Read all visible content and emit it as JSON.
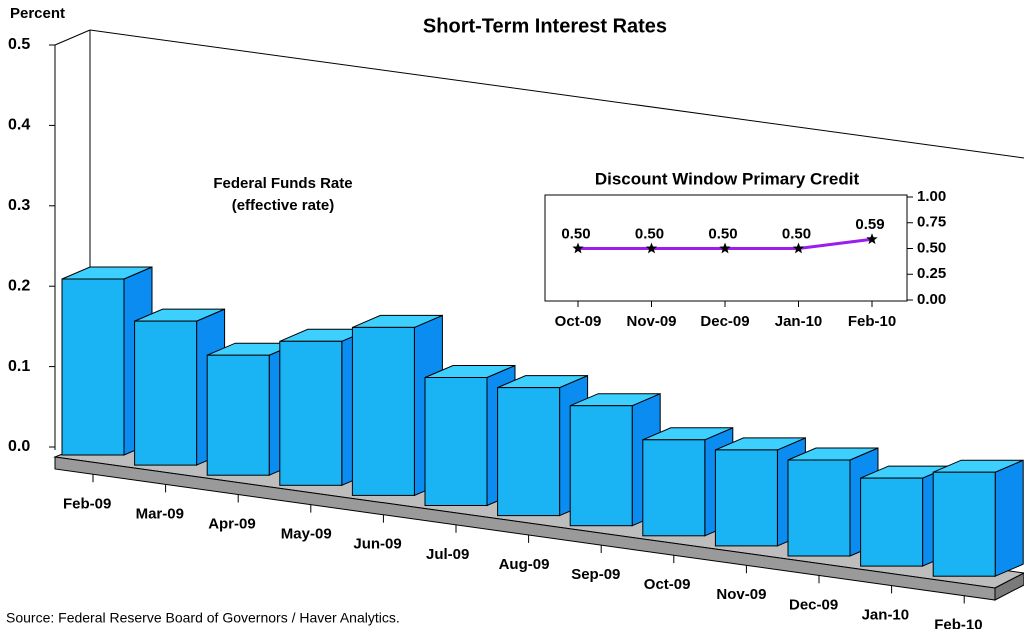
{
  "chart_data": [
    {
      "type": "bar3d",
      "title": "Short-Term Interest Rates",
      "y_label": "Percent",
      "annotation": [
        "Federal Funds Rate",
        "(effective rate)"
      ],
      "annotation_color": "#1ec8ff",
      "source": "Source: Federal Reserve Board of Governors / Haver Analytics.",
      "categories": [
        "Feb-09",
        "Mar-09",
        "Apr-09",
        "May-09",
        "Jun-09",
        "Jul-09",
        "Aug-09",
        "Sep-09",
        "Oct-09",
        "Nov-09",
        "Dec-09",
        "Jan-10",
        "Feb-10"
      ],
      "values": [
        0.22,
        0.18,
        0.15,
        0.18,
        0.21,
        0.16,
        0.16,
        0.15,
        0.12,
        0.12,
        0.12,
        0.11,
        0.13
      ],
      "colors": {
        "front": "#1ab4f5",
        "top": "#3dd0ff",
        "side": "#0a8cf0"
      },
      "ylim": [
        0,
        0.5
      ],
      "yticks": [
        {
          "value": 0,
          "label": "0.0"
        },
        0.1,
        0.2,
        0.3,
        0.4,
        0.5
      ]
    },
    {
      "type": "line",
      "title": "Discount Window Primary Credit",
      "color": "#9b1ef0",
      "categories": [
        "Oct-09",
        "Nov-09",
        "Dec-09",
        "Jan-10",
        "Feb-10"
      ],
      "values": [
        0.5,
        0.5,
        0.5,
        0.5,
        0.59
      ],
      "value_labels": [
        "0.50",
        "0.50",
        "0.50",
        "0.50",
        "0.59"
      ],
      "ylim": [
        0,
        1
      ],
      "yticks": [
        {
          "value": 0,
          "label": "0.00"
        },
        {
          "value": 0.25,
          "label": "0.25"
        },
        {
          "value": 0.5,
          "label": "0.50"
        },
        {
          "value": 0.75,
          "label": "0.75"
        },
        {
          "value": 1,
          "label": "1.00"
        }
      ]
    }
  ]
}
